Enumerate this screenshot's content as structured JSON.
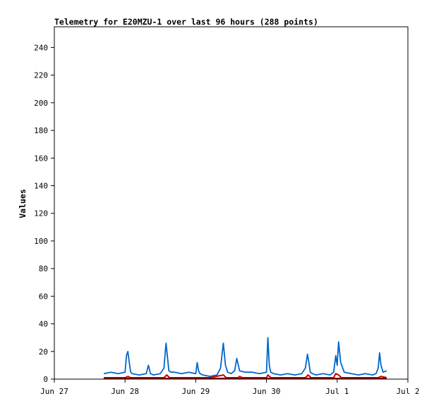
{
  "chart_data": {
    "type": "line",
    "title": "Telemetry for E20MZU-1 over last 96 hours (288 points)",
    "xlabel": "",
    "ylabel": "Values",
    "x_tick_labels": [
      "Jun 27",
      "Jun 28",
      "Jun 29",
      "Jun 30",
      "Jul 1",
      "Jul 2"
    ],
    "xlim": [
      0,
      5
    ],
    "ylim": [
      0,
      255
    ],
    "y_ticks": [
      0,
      20,
      40,
      60,
      80,
      100,
      120,
      140,
      160,
      180,
      200,
      220,
      240
    ],
    "grid": false,
    "legend": "none",
    "x_unit": "days since Jun 27",
    "series": [
      {
        "color": "#0066cc",
        "x": [
          0.7,
          0.8,
          0.9,
          1.0,
          1.02,
          1.04,
          1.06,
          1.08,
          1.1,
          1.2,
          1.3,
          1.33,
          1.36,
          1.4,
          1.5,
          1.55,
          1.58,
          1.6,
          1.62,
          1.65,
          1.7,
          1.8,
          1.9,
          2.0,
          2.02,
          2.04,
          2.06,
          2.1,
          2.2,
          2.3,
          2.35,
          2.39,
          2.42,
          2.45,
          2.5,
          2.55,
          2.58,
          2.62,
          2.7,
          2.8,
          2.9,
          3.0,
          3.02,
          3.04,
          3.06,
          3.1,
          3.2,
          3.3,
          3.4,
          3.5,
          3.55,
          3.58,
          3.6,
          3.62,
          3.65,
          3.7,
          3.8,
          3.9,
          3.95,
          3.98,
          4.0,
          4.02,
          4.05,
          4.1,
          4.2,
          4.3,
          4.4,
          4.5,
          4.55,
          4.58,
          4.6,
          4.62,
          4.65,
          4.7
        ],
        "y": [
          4,
          5,
          4,
          5,
          17,
          20,
          12,
          5,
          4,
          3,
          4,
          10,
          4,
          3,
          4,
          8,
          26,
          16,
          6,
          5,
          5,
          4,
          5,
          4,
          12,
          6,
          4,
          3,
          2,
          3,
          8,
          26,
          10,
          5,
          4,
          6,
          15,
          6,
          5,
          5,
          4,
          5,
          30,
          10,
          5,
          4,
          3,
          4,
          3,
          4,
          8,
          18,
          12,
          5,
          4,
          3,
          4,
          3,
          5,
          17,
          10,
          27,
          12,
          5,
          4,
          3,
          4,
          3,
          4,
          8,
          19,
          10,
          5,
          6
        ]
      },
      {
        "color": "#cc0000",
        "x": [
          0.7,
          0.85,
          1.0,
          1.04,
          1.08,
          1.2,
          1.4,
          1.55,
          1.59,
          1.63,
          1.8,
          2.0,
          2.2,
          2.39,
          2.43,
          2.6,
          2.62,
          2.66,
          2.8,
          3.0,
          3.02,
          3.06,
          3.2,
          3.4,
          3.55,
          3.59,
          3.63,
          3.8,
          3.95,
          3.98,
          4.02,
          4.06,
          4.2,
          4.4,
          4.58,
          4.62,
          4.7
        ],
        "y": [
          1,
          1,
          1,
          2,
          1,
          1,
          1,
          1,
          3,
          1,
          1,
          1,
          1,
          3,
          1,
          1,
          2,
          1,
          1,
          1,
          3,
          1,
          1,
          1,
          1,
          3,
          1,
          1,
          1,
          4,
          3,
          1,
          1,
          1,
          1,
          2,
          1
        ]
      },
      {
        "color": "#660000",
        "x": [
          0.7,
          1.0,
          1.5,
          2.0,
          2.5,
          3.0,
          3.5,
          4.0,
          4.5,
          4.7
        ],
        "y": [
          0.5,
          0.5,
          0.5,
          0.5,
          0.5,
          0.5,
          0.5,
          0.5,
          0.5,
          0.5
        ]
      }
    ]
  }
}
